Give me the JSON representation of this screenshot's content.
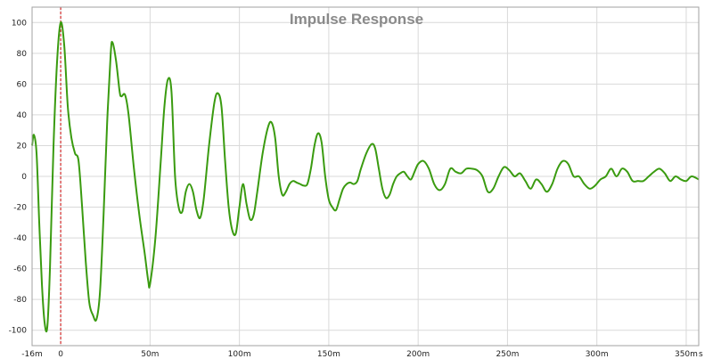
{
  "chart_data": {
    "type": "line",
    "title": "Impulse Response",
    "xlabel": "",
    "ylabel": "",
    "x_unit": "s",
    "xlim": [
      -0.016,
      0.357
    ],
    "ylim": [
      -110,
      110
    ],
    "grid": true,
    "x_ticks": [
      {
        "value": -0.016,
        "label": "-16m"
      },
      {
        "value": 0,
        "label": "0"
      },
      {
        "value": 0.05,
        "label": "50m"
      },
      {
        "value": 0.1,
        "label": "100m"
      },
      {
        "value": 0.15,
        "label": "150m"
      },
      {
        "value": 0.2,
        "label": "200m"
      },
      {
        "value": 0.25,
        "label": "250m"
      },
      {
        "value": 0.3,
        "label": "300m"
      },
      {
        "value": 0.35,
        "label": "350m"
      }
    ],
    "y_ticks": [
      {
        "value": 100,
        "label": "100"
      },
      {
        "value": 80,
        "label": "80"
      },
      {
        "value": 60,
        "label": "60"
      },
      {
        "value": 40,
        "label": "40"
      },
      {
        "value": 20,
        "label": "20"
      },
      {
        "value": 0,
        "label": "0"
      },
      {
        "value": -20,
        "label": "-20"
      },
      {
        "value": -40,
        "label": "-40"
      },
      {
        "value": -60,
        "label": "-60"
      },
      {
        "value": -80,
        "label": "-80"
      },
      {
        "value": -100,
        "label": "-100"
      }
    ],
    "marker": {
      "x": 0,
      "color": "#cc0000"
    },
    "colors": {
      "series": "#3a9b10",
      "grid": "#d9d9d9",
      "title": "#8a8a8a",
      "marker": "#cc0000"
    },
    "series": [
      {
        "color": "#3a9b10",
        "points": [
          [
            -0.016,
            20
          ],
          [
            -0.015,
            27
          ],
          [
            -0.0135,
            15
          ],
          [
            -0.012,
            -30
          ],
          [
            -0.0105,
            -70
          ],
          [
            -0.009,
            -95
          ],
          [
            -0.0075,
            -98
          ],
          [
            -0.006,
            -60
          ],
          [
            -0.004,
            20
          ],
          [
            -0.002,
            75
          ],
          [
            0,
            100
          ],
          [
            0.002,
            85
          ],
          [
            0.004,
            45
          ],
          [
            0.006,
            25
          ],
          [
            0.008,
            15
          ],
          [
            0.01,
            10
          ],
          [
            0.012,
            -20
          ],
          [
            0.014,
            -55
          ],
          [
            0.016,
            -82
          ],
          [
            0.018,
            -90
          ],
          [
            0.02,
            -93
          ],
          [
            0.022,
            -75
          ],
          [
            0.024,
            -25
          ],
          [
            0.026,
            35
          ],
          [
            0.028,
            80
          ],
          [
            0.029,
            87
          ],
          [
            0.031,
            75
          ],
          [
            0.033,
            55
          ],
          [
            0.034,
            52
          ],
          [
            0.036,
            53
          ],
          [
            0.038,
            40
          ],
          [
            0.041,
            5
          ],
          [
            0.044,
            -25
          ],
          [
            0.047,
            -50
          ],
          [
            0.049,
            -68
          ],
          [
            0.05,
            -70
          ],
          [
            0.053,
            -40
          ],
          [
            0.056,
            10
          ],
          [
            0.058,
            45
          ],
          [
            0.06,
            63
          ],
          [
            0.062,
            55
          ],
          [
            0.064,
            0
          ],
          [
            0.066,
            -20
          ],
          [
            0.068,
            -23
          ],
          [
            0.07,
            -10
          ],
          [
            0.072,
            -5
          ],
          [
            0.074,
            -10
          ],
          [
            0.076,
            -22
          ],
          [
            0.078,
            -27
          ],
          [
            0.08,
            -15
          ],
          [
            0.083,
            20
          ],
          [
            0.086,
            48
          ],
          [
            0.088,
            54
          ],
          [
            0.09,
            45
          ],
          [
            0.092,
            10
          ],
          [
            0.094,
            -20
          ],
          [
            0.096,
            -35
          ],
          [
            0.098,
            -37
          ],
          [
            0.1,
            -20
          ],
          [
            0.102,
            -5
          ],
          [
            0.104,
            -18
          ],
          [
            0.106,
            -28
          ],
          [
            0.108,
            -25
          ],
          [
            0.11,
            -10
          ],
          [
            0.113,
            15
          ],
          [
            0.116,
            32
          ],
          [
            0.118,
            35
          ],
          [
            0.12,
            25
          ],
          [
            0.122,
            0
          ],
          [
            0.124,
            -12
          ],
          [
            0.126,
            -10
          ],
          [
            0.128,
            -5
          ],
          [
            0.13,
            -3
          ],
          [
            0.132,
            -4
          ],
          [
            0.134,
            -5
          ],
          [
            0.136,
            -6
          ],
          [
            0.138,
            -5
          ],
          [
            0.14,
            5
          ],
          [
            0.142,
            20
          ],
          [
            0.144,
            28
          ],
          [
            0.146,
            22
          ],
          [
            0.148,
            0
          ],
          [
            0.15,
            -15
          ],
          [
            0.152,
            -20
          ],
          [
            0.154,
            -22
          ],
          [
            0.156,
            -15
          ],
          [
            0.158,
            -8
          ],
          [
            0.16,
            -5
          ],
          [
            0.162,
            -4
          ],
          [
            0.164,
            -5
          ],
          [
            0.166,
            -3
          ],
          [
            0.168,
            5
          ],
          [
            0.171,
            15
          ],
          [
            0.174,
            21
          ],
          [
            0.176,
            18
          ],
          [
            0.178,
            5
          ],
          [
            0.18,
            -8
          ],
          [
            0.182,
            -14
          ],
          [
            0.184,
            -12
          ],
          [
            0.186,
            -5
          ],
          [
            0.188,
            0
          ],
          [
            0.19,
            2
          ],
          [
            0.192,
            3
          ],
          [
            0.194,
            0
          ],
          [
            0.196,
            -2
          ],
          [
            0.198,
            3
          ],
          [
            0.2,
            8
          ],
          [
            0.203,
            10
          ],
          [
            0.206,
            5
          ],
          [
            0.209,
            -5
          ],
          [
            0.212,
            -9
          ],
          [
            0.215,
            -5
          ],
          [
            0.218,
            5
          ],
          [
            0.221,
            3
          ],
          [
            0.224,
            2
          ],
          [
            0.227,
            5
          ],
          [
            0.23,
            5
          ],
          [
            0.233,
            4
          ],
          [
            0.236,
            0
          ],
          [
            0.239,
            -10
          ],
          [
            0.242,
            -8
          ],
          [
            0.245,
            0
          ],
          [
            0.248,
            6
          ],
          [
            0.251,
            4
          ],
          [
            0.254,
            0
          ],
          [
            0.257,
            2
          ],
          [
            0.26,
            -3
          ],
          [
            0.263,
            -8
          ],
          [
            0.266,
            -2
          ],
          [
            0.269,
            -5
          ],
          [
            0.272,
            -10
          ],
          [
            0.275,
            -5
          ],
          [
            0.278,
            5
          ],
          [
            0.281,
            10
          ],
          [
            0.284,
            8
          ],
          [
            0.287,
            0
          ],
          [
            0.29,
            0
          ],
          [
            0.293,
            -5
          ],
          [
            0.296,
            -8
          ],
          [
            0.299,
            -6
          ],
          [
            0.302,
            -2
          ],
          [
            0.305,
            0
          ],
          [
            0.308,
            5
          ],
          [
            0.311,
            0
          ],
          [
            0.314,
            5
          ],
          [
            0.317,
            3
          ],
          [
            0.32,
            -3
          ],
          [
            0.323,
            -3
          ],
          [
            0.326,
            -3
          ],
          [
            0.329,
            0
          ],
          [
            0.332,
            3
          ],
          [
            0.335,
            5
          ],
          [
            0.338,
            2
          ],
          [
            0.341,
            -3
          ],
          [
            0.344,
            0
          ],
          [
            0.347,
            -2
          ],
          [
            0.35,
            -3
          ],
          [
            0.353,
            0
          ],
          [
            0.357,
            -2
          ]
        ]
      }
    ]
  }
}
